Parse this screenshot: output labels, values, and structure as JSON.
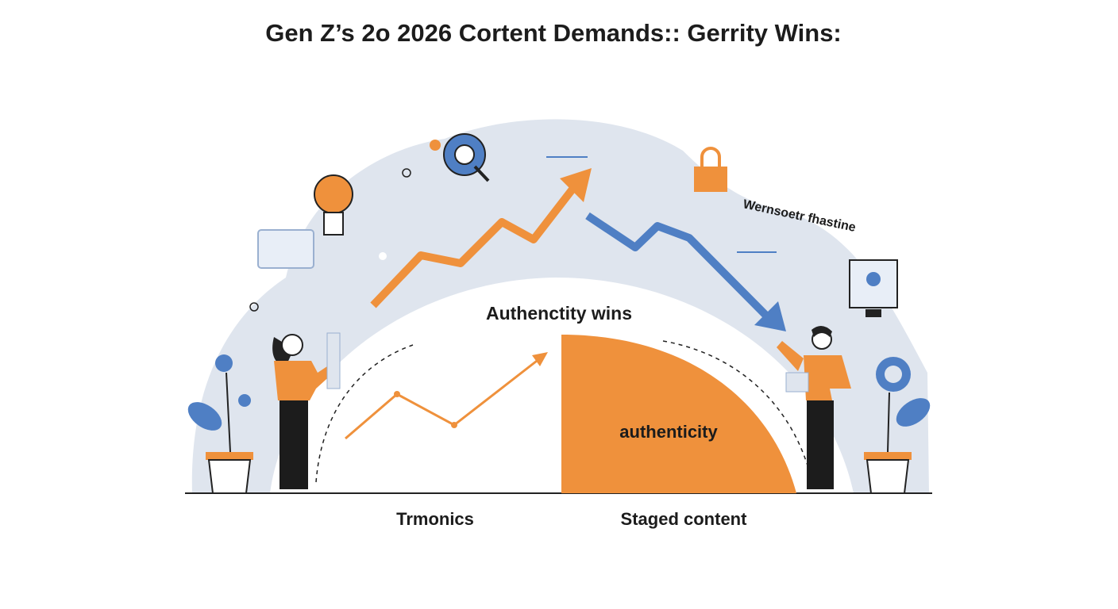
{
  "header": {
    "title": "Gen Z’s 2o 2026 Cortent Demands:: Gerrity Wins:"
  },
  "illustration": {
    "top_label": "Authenctity wins",
    "side_label": "Wernsoetr fhastine",
    "shape_label": "authenticity",
    "left_caption": "Trmonics",
    "right_caption": "Staged content"
  }
}
